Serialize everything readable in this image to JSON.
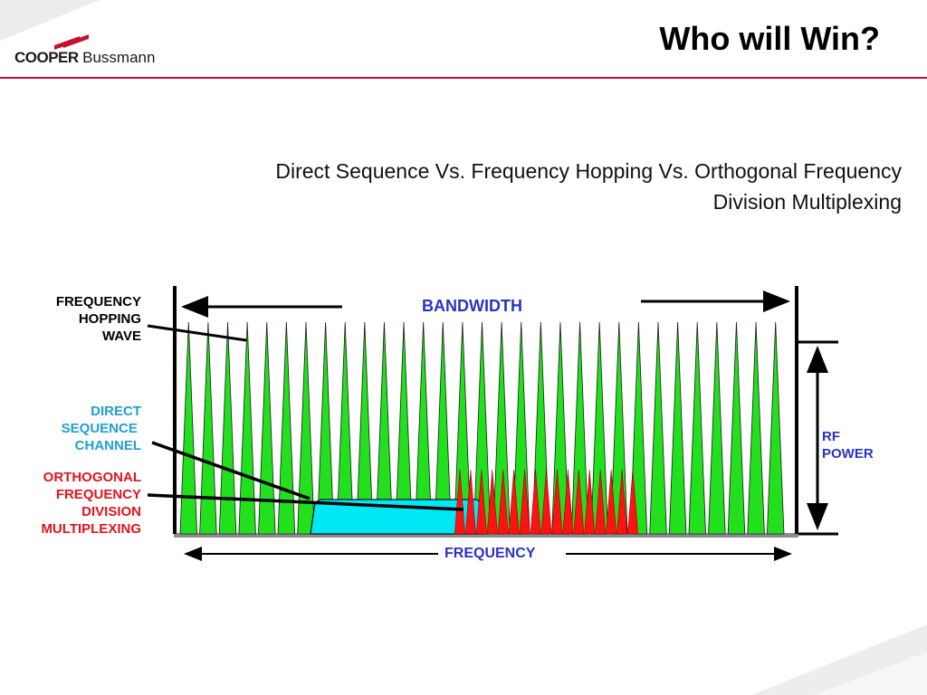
{
  "slide": {
    "title": "Who will Win?",
    "subtitle_line1": "Direct Sequence Vs. Frequency Hopping Vs. Orthogonal Frequency",
    "subtitle_line2": "Division Multiplexing"
  },
  "logo": {
    "brand_bold": "COOPER",
    "brand_regular": "Bussmann"
  },
  "diagram": {
    "labels": {
      "frequency_hopping": [
        "FREQUENCY",
        "HOPPING",
        "WAVE"
      ],
      "direct_sequence": [
        "DIRECT",
        "SEQUENCE ",
        "CHANNEL"
      ],
      "ofdm": [
        "ORTHOGONAL",
        "FREQUENCY",
        "DIVISION",
        "MULTIPLEXING"
      ],
      "rf_power": [
        "RF",
        "POWER"
      ],
      "bandwidth": "BANDWIDTH",
      "frequency": "FREQUENCY"
    },
    "frequency_hopping_spikes": 31,
    "ofdm_subcarriers": 17,
    "colors": {
      "hopping": "#22e01e",
      "direct_sequence": "#00e5f5",
      "ofdm": "#ff1212",
      "axis_text": "#2b33c4",
      "brand_red": "#c8102e"
    }
  }
}
